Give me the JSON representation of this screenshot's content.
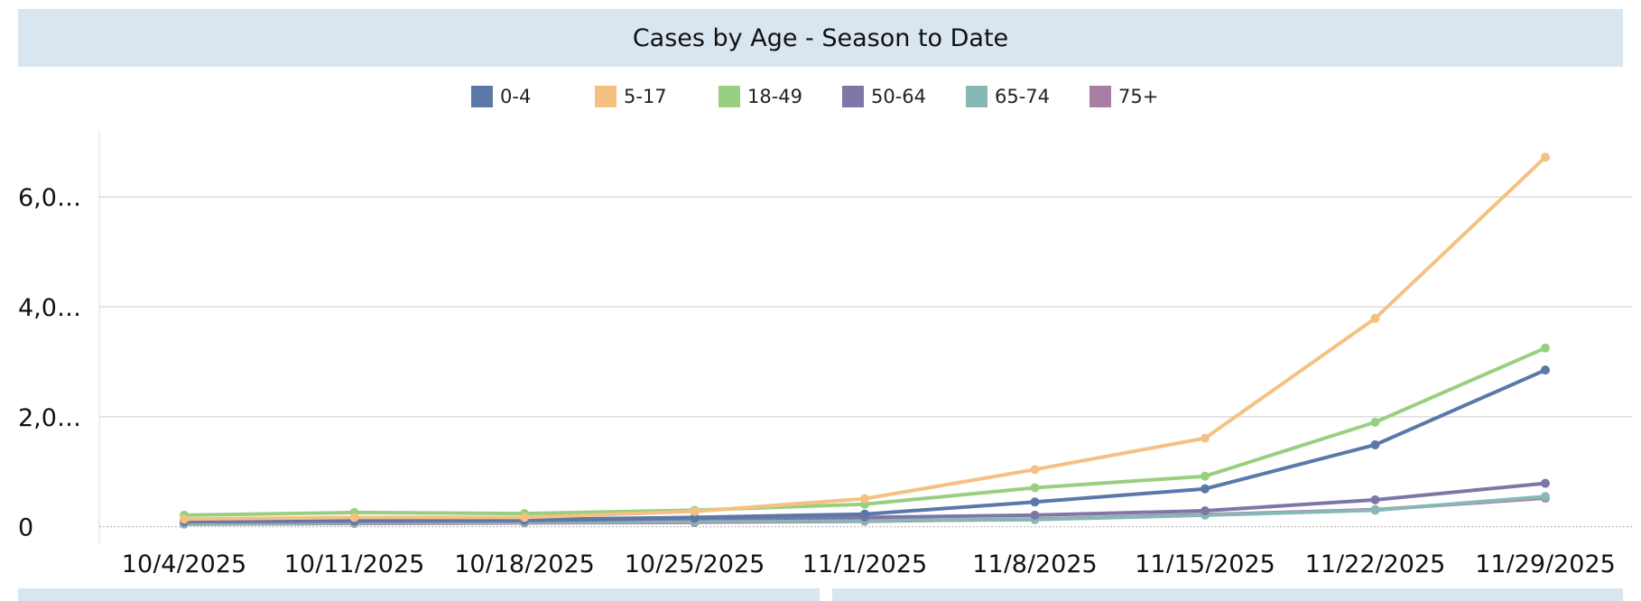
{
  "chart_data": {
    "type": "line",
    "title": "Cases by Age - Season to Date",
    "xlabel": "",
    "ylabel": "",
    "categories": [
      "10/4/2025",
      "10/11/2025",
      "10/18/2025",
      "10/25/2025",
      "11/1/2025",
      "11/8/2025",
      "11/15/2025",
      "11/22/2025",
      "11/29/2025"
    ],
    "y_ticks": [
      {
        "value": 0,
        "label": "0"
      },
      {
        "value": 2000,
        "label": "2,0…"
      },
      {
        "value": 4000,
        "label": "4,0…"
      },
      {
        "value": 6000,
        "label": "6,0…"
      }
    ],
    "ylim": [
      -300,
      7200
    ],
    "grid": true,
    "legend_position": "top-center",
    "series": [
      {
        "name": "0-4",
        "color": "#5a78a8",
        "values": [
          120,
          130,
          130,
          170,
          230,
          450,
          690,
          1490,
          2850
        ]
      },
      {
        "name": "5-17",
        "color": "#f5c183",
        "values": [
          140,
          170,
          170,
          280,
          510,
          1040,
          1610,
          3790,
          6720
        ]
      },
      {
        "name": "18-49",
        "color": "#99cf80",
        "values": [
          210,
          260,
          240,
          300,
          410,
          710,
          920,
          1900,
          3250
        ]
      },
      {
        "name": "50-64",
        "color": "#7f76a8",
        "values": [
          90,
          100,
          110,
          150,
          170,
          210,
          290,
          490,
          790
        ]
      },
      {
        "name": "65-74",
        "color": "#86b8b6",
        "values": [
          60,
          70,
          80,
          100,
          110,
          130,
          210,
          300,
          550
        ]
      },
      {
        "name": "75+",
        "color": "#a97ea3",
        "values": [
          50,
          60,
          70,
          80,
          100,
          140,
          220,
          310,
          520
        ]
      }
    ]
  }
}
